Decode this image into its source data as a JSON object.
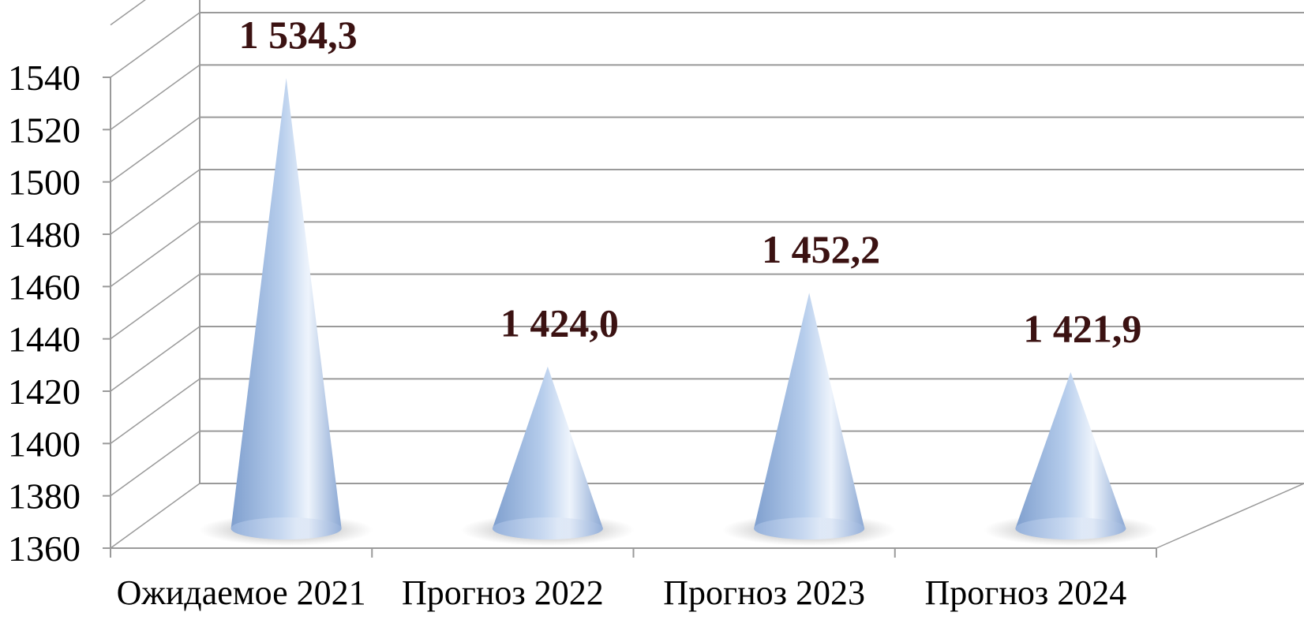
{
  "chart_data": {
    "type": "bar",
    "style": "3d-cone",
    "categories": [
      "Ожидаемое 2021",
      "Прогноз 2022",
      "Прогноз 2023",
      "Прогноз 2024"
    ],
    "values": [
      1534.3,
      1424.0,
      1452.2,
      1421.9
    ],
    "data_labels": [
      "1 534,3",
      "1 424,0",
      "1 452,2",
      "1 421,9"
    ],
    "ylim": [
      1360,
      1540
    ],
    "yticks": [
      1360,
      1380,
      1400,
      1420,
      1440,
      1460,
      1480,
      1500,
      1520,
      1540
    ],
    "grid": true,
    "legend": "none",
    "colors": {
      "cone_light": "#eef4fc",
      "cone_mid": "#b6cdec",
      "cone_dark": "#7f9fce",
      "data_label": "#3b1212",
      "grid": "#9a9a9a"
    }
  }
}
